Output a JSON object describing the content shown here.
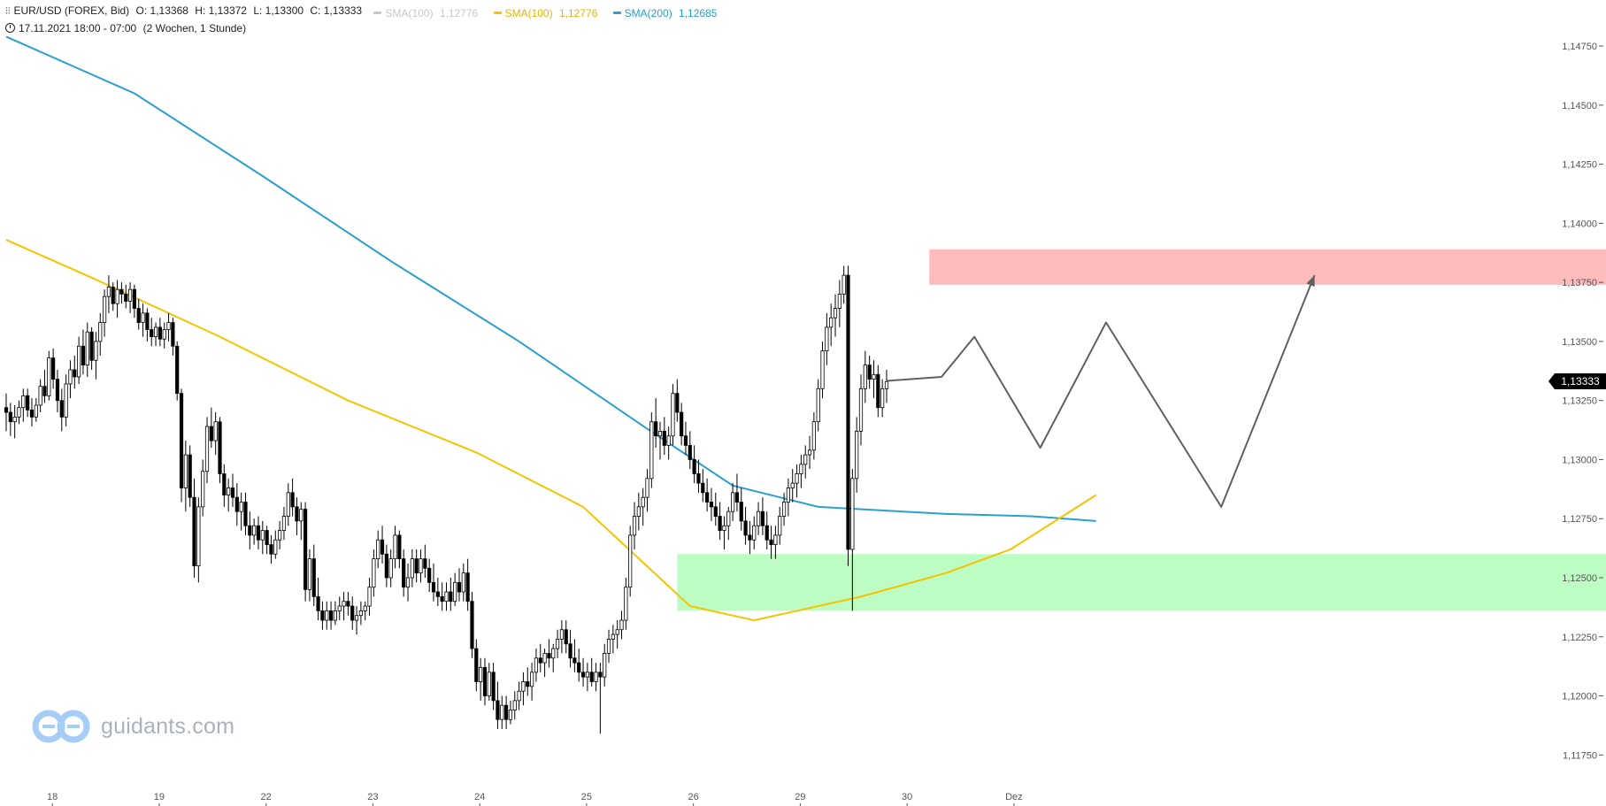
{
  "header": {
    "symbol": "EUR/USD (FOREX, Bid)",
    "open": "O: 1,13368",
    "high": "H: 1,13372",
    "low": "L: 1,13300",
    "close": "C: 1,13333",
    "indicators": [
      {
        "label": "SMA(100)",
        "value": "1,12776",
        "color": "#c8c8c8"
      },
      {
        "label": "SMA(100)",
        "value": "1,12776",
        "color": "#f5c400"
      },
      {
        "label": "SMA(200)",
        "value": "1,12685",
        "color": "#2a9fd0"
      }
    ],
    "period": "17.11.2021 18:00 - 07:00",
    "range": "(2 Wochen, 1 Stunde)"
  },
  "price_tag": "1,13333",
  "watermark": "guidants.com",
  "chart_data": {
    "type": "candlestick",
    "ylim": [
      1.1165,
      1.149
    ],
    "y_ticks": [
      "1,11750",
      "1,12000",
      "1,12250",
      "1,12500",
      "1,12750",
      "1,13000",
      "1,13250",
      "1,13500",
      "1,13750",
      "1,14000",
      "1,14250",
      "1,14500",
      "1,14750"
    ],
    "y_tick_values": [
      1.1175,
      1.12,
      1.1225,
      1.125,
      1.1275,
      1.13,
      1.1325,
      1.135,
      1.1375,
      1.14,
      1.1425,
      1.145,
      1.1475
    ],
    "x_ticks": [
      "18",
      "19",
      "22",
      "23",
      "24",
      "25",
      "26",
      "29",
      "30",
      "Dez"
    ],
    "x_tick_bar_index": [
      5,
      30,
      55,
      80,
      105,
      130,
      155,
      180,
      205,
      230
    ],
    "last_price": 1.13333,
    "ohlc": [
      [
        1.1322,
        1.1328,
        1.1312,
        1.132
      ],
      [
        1.132,
        1.1324,
        1.131,
        1.1316
      ],
      [
        1.1316,
        1.1323,
        1.1309,
        1.1318
      ],
      [
        1.1318,
        1.1325,
        1.1315,
        1.1322
      ],
      [
        1.1322,
        1.133,
        1.1316,
        1.1327
      ],
      [
        1.1327,
        1.133,
        1.1318,
        1.1321
      ],
      [
        1.1321,
        1.1326,
        1.1314,
        1.1318
      ],
      [
        1.1318,
        1.1326,
        1.1316,
        1.1323
      ],
      [
        1.1323,
        1.1334,
        1.132,
        1.1331
      ],
      [
        1.1331,
        1.1338,
        1.1324,
        1.1327
      ],
      [
        1.1327,
        1.1346,
        1.1325,
        1.1343
      ],
      [
        1.1343,
        1.1347,
        1.133,
        1.1334
      ],
      [
        1.1334,
        1.1338,
        1.132,
        1.1325
      ],
      [
        1.1325,
        1.133,
        1.1312,
        1.1318
      ],
      [
        1.1318,
        1.1336,
        1.1314,
        1.1332
      ],
      [
        1.1332,
        1.1342,
        1.1326,
        1.1338
      ],
      [
        1.1338,
        1.1344,
        1.133,
        1.1335
      ],
      [
        1.1335,
        1.1352,
        1.1332,
        1.1348
      ],
      [
        1.1348,
        1.1355,
        1.1336,
        1.134
      ],
      [
        1.134,
        1.1358,
        1.1335,
        1.1354
      ],
      [
        1.1354,
        1.1356,
        1.1338,
        1.1342
      ],
      [
        1.1342,
        1.1354,
        1.1334,
        1.135
      ],
      [
        1.135,
        1.1362,
        1.1344,
        1.1358
      ],
      [
        1.1358,
        1.1372,
        1.1352,
        1.1369
      ],
      [
        1.1369,
        1.1378,
        1.1362,
        1.1373
      ],
      [
        1.1373,
        1.1375,
        1.1363,
        1.1366
      ],
      [
        1.1366,
        1.1376,
        1.136,
        1.1372
      ],
      [
        1.1372,
        1.1375,
        1.1366,
        1.137
      ],
      [
        1.137,
        1.1374,
        1.1364,
        1.1367
      ],
      [
        1.1367,
        1.1375,
        1.1362,
        1.1372
      ],
      [
        1.1372,
        1.1374,
        1.136,
        1.1364
      ],
      [
        1.1364,
        1.1368,
        1.1355,
        1.1358
      ],
      [
        1.1358,
        1.1366,
        1.1352,
        1.1362
      ],
      [
        1.1362,
        1.1364,
        1.135,
        1.1355
      ],
      [
        1.1355,
        1.136,
        1.1348,
        1.1352
      ],
      [
        1.1352,
        1.1358,
        1.1348,
        1.1356
      ],
      [
        1.1356,
        1.136,
        1.1348,
        1.1351
      ],
      [
        1.1351,
        1.1358,
        1.1347,
        1.1355
      ],
      [
        1.1355,
        1.1362,
        1.135,
        1.1358
      ],
      [
        1.1358,
        1.136,
        1.1344,
        1.1348
      ],
      [
        1.1348,
        1.135,
        1.1325,
        1.1328
      ],
      [
        1.1328,
        1.133,
        1.1282,
        1.1288
      ],
      [
        1.1288,
        1.1308,
        1.1278,
        1.1302
      ],
      [
        1.1302,
        1.1306,
        1.128,
        1.1284
      ],
      [
        1.1284,
        1.1292,
        1.125,
        1.1255
      ],
      [
        1.1255,
        1.1284,
        1.1248,
        1.128
      ],
      [
        1.128,
        1.13,
        1.1276,
        1.1295
      ],
      [
        1.1295,
        1.1318,
        1.129,
        1.1314
      ],
      [
        1.1314,
        1.1322,
        1.1305,
        1.1308
      ],
      [
        1.1308,
        1.132,
        1.1302,
        1.1316
      ],
      [
        1.1316,
        1.1318,
        1.129,
        1.1294
      ],
      [
        1.1294,
        1.1298,
        1.128,
        1.1285
      ],
      [
        1.1285,
        1.1292,
        1.1278,
        1.1288
      ],
      [
        1.1288,
        1.1294,
        1.128,
        1.1284
      ],
      [
        1.1284,
        1.129,
        1.1272,
        1.1278
      ],
      [
        1.1278,
        1.1286,
        1.127,
        1.1282
      ],
      [
        1.1282,
        1.1286,
        1.1268,
        1.1272
      ],
      [
        1.1272,
        1.1278,
        1.1262,
        1.1268
      ],
      [
        1.1268,
        1.1275,
        1.1264,
        1.1272
      ],
      [
        1.1272,
        1.1276,
        1.1262,
        1.1266
      ],
      [
        1.1266,
        1.1274,
        1.126,
        1.127
      ],
      [
        1.127,
        1.1272,
        1.126,
        1.1264
      ],
      [
        1.1264,
        1.1268,
        1.1256,
        1.126
      ],
      [
        1.126,
        1.127,
        1.1258,
        1.1266
      ],
      [
        1.1266,
        1.1274,
        1.1262,
        1.127
      ],
      [
        1.127,
        1.128,
        1.1266,
        1.1276
      ],
      [
        1.1276,
        1.129,
        1.1272,
        1.1286
      ],
      [
        1.1286,
        1.1292,
        1.1276,
        1.128
      ],
      [
        1.128,
        1.1284,
        1.1268,
        1.1274
      ],
      [
        1.1274,
        1.1282,
        1.1266,
        1.1279
      ],
      [
        1.1279,
        1.1282,
        1.124,
        1.1245
      ],
      [
        1.1245,
        1.1262,
        1.124,
        1.1258
      ],
      [
        1.1258,
        1.1264,
        1.1238,
        1.1242
      ],
      [
        1.1242,
        1.125,
        1.1232,
        1.1236
      ],
      [
        1.1236,
        1.124,
        1.1228,
        1.1232
      ],
      [
        1.1232,
        1.124,
        1.1228,
        1.1236
      ],
      [
        1.1236,
        1.124,
        1.1228,
        1.1232
      ],
      [
        1.1232,
        1.124,
        1.123,
        1.1236
      ],
      [
        1.1236,
        1.1242,
        1.1232,
        1.1238
      ],
      [
        1.1238,
        1.1244,
        1.1232,
        1.124
      ],
      [
        1.124,
        1.1244,
        1.1234,
        1.1238
      ],
      [
        1.1238,
        1.1242,
        1.1228,
        1.1232
      ],
      [
        1.1232,
        1.1238,
        1.1226,
        1.1234
      ],
      [
        1.1234,
        1.124,
        1.123,
        1.1236
      ],
      [
        1.1236,
        1.124,
        1.1232,
        1.1238
      ],
      [
        1.1238,
        1.125,
        1.1234,
        1.1246
      ],
      [
        1.1246,
        1.1262,
        1.1242,
        1.1258
      ],
      [
        1.1258,
        1.127,
        1.1254,
        1.1266
      ],
      [
        1.1266,
        1.1272,
        1.1256,
        1.126
      ],
      [
        1.126,
        1.1264,
        1.1246,
        1.125
      ],
      [
        1.125,
        1.1262,
        1.1246,
        1.1258
      ],
      [
        1.1258,
        1.1272,
        1.1254,
        1.1268
      ],
      [
        1.1268,
        1.127,
        1.1254,
        1.1258
      ],
      [
        1.1258,
        1.1262,
        1.1242,
        1.1246
      ],
      [
        1.1246,
        1.1256,
        1.124,
        1.125
      ],
      [
        1.125,
        1.1262,
        1.1246,
        1.1258
      ],
      [
        1.1258,
        1.1262,
        1.1248,
        1.1252
      ],
      [
        1.1252,
        1.1262,
        1.1248,
        1.1258
      ],
      [
        1.1258,
        1.1264,
        1.125,
        1.1254
      ],
      [
        1.1254,
        1.1258,
        1.1244,
        1.1248
      ],
      [
        1.1248,
        1.1256,
        1.124,
        1.1244
      ],
      [
        1.1244,
        1.125,
        1.1238,
        1.1242
      ],
      [
        1.1242,
        1.1248,
        1.1236,
        1.124
      ],
      [
        1.124,
        1.1248,
        1.1236,
        1.1244
      ],
      [
        1.1244,
        1.125,
        1.1236,
        1.124
      ],
      [
        1.124,
        1.1252,
        1.1238,
        1.1248
      ],
      [
        1.1248,
        1.1254,
        1.124,
        1.1244
      ],
      [
        1.1244,
        1.1256,
        1.124,
        1.1252
      ],
      [
        1.1252,
        1.1258,
        1.1236,
        1.124
      ],
      [
        1.124,
        1.1244,
        1.1216,
        1.122
      ],
      [
        1.122,
        1.1224,
        1.1202,
        1.1206
      ],
      [
        1.1206,
        1.1216,
        1.1198,
        1.1212
      ],
      [
        1.1212,
        1.1216,
        1.1196,
        1.12
      ],
      [
        1.12,
        1.1214,
        1.1198,
        1.121
      ],
      [
        1.121,
        1.1214,
        1.1194,
        1.1198
      ],
      [
        1.1198,
        1.1206,
        1.1186,
        1.119
      ],
      [
        1.119,
        1.12,
        1.1186,
        1.1196
      ],
      [
        1.1196,
        1.12,
        1.1186,
        1.119
      ],
      [
        1.119,
        1.1198,
        1.1188,
        1.1194
      ],
      [
        1.1194,
        1.1202,
        1.119,
        1.1198
      ],
      [
        1.1198,
        1.1206,
        1.1194,
        1.1202
      ],
      [
        1.1202,
        1.121,
        1.1196,
        1.1206
      ],
      [
        1.1206,
        1.1212,
        1.12,
        1.1204
      ],
      [
        1.1204,
        1.1214,
        1.1198,
        1.121
      ],
      [
        1.121,
        1.122,
        1.1206,
        1.1216
      ],
      [
        1.1216,
        1.1222,
        1.121,
        1.1214
      ],
      [
        1.1214,
        1.122,
        1.1208,
        1.1218
      ],
      [
        1.1218,
        1.1224,
        1.1212,
        1.1216
      ],
      [
        1.1216,
        1.1222,
        1.121,
        1.122
      ],
      [
        1.122,
        1.1228,
        1.1216,
        1.1224
      ],
      [
        1.1224,
        1.1232,
        1.1218,
        1.1228
      ],
      [
        1.1228,
        1.1232,
        1.1218,
        1.1222
      ],
      [
        1.1222,
        1.1228,
        1.1212,
        1.1216
      ],
      [
        1.1216,
        1.1224,
        1.121,
        1.1214
      ],
      [
        1.1214,
        1.122,
        1.1206,
        1.121
      ],
      [
        1.121,
        1.1216,
        1.1204,
        1.1208
      ],
      [
        1.1208,
        1.1214,
        1.1202,
        1.121
      ],
      [
        1.121,
        1.1216,
        1.1204,
        1.1206
      ],
      [
        1.1206,
        1.1214,
        1.1202,
        1.121
      ],
      [
        1.121,
        1.1214,
        1.1184,
        1.1208
      ],
      [
        1.1208,
        1.1222,
        1.1204,
        1.1218
      ],
      [
        1.1218,
        1.1228,
        1.1214,
        1.1224
      ],
      [
        1.1224,
        1.123,
        1.1218,
        1.1226
      ],
      [
        1.1226,
        1.1232,
        1.122,
        1.1228
      ],
      [
        1.1228,
        1.1236,
        1.1224,
        1.1232
      ],
      [
        1.1232,
        1.125,
        1.1228,
        1.1246
      ],
      [
        1.1246,
        1.1272,
        1.1242,
        1.1268
      ],
      [
        1.1268,
        1.1282,
        1.1262,
        1.1276
      ],
      [
        1.1276,
        1.1286,
        1.127,
        1.128
      ],
      [
        1.128,
        1.1288,
        1.1272,
        1.1284
      ],
      [
        1.1284,
        1.1296,
        1.1278,
        1.1292
      ],
      [
        1.1292,
        1.132,
        1.1288,
        1.1316
      ],
      [
        1.1316,
        1.1326,
        1.1305,
        1.131
      ],
      [
        1.131,
        1.1316,
        1.13,
        1.1312
      ],
      [
        1.1312,
        1.1318,
        1.1302,
        1.1306
      ],
      [
        1.1306,
        1.1314,
        1.13,
        1.131
      ],
      [
        1.131,
        1.1332,
        1.1306,
        1.1328
      ],
      [
        1.1328,
        1.1334,
        1.1316,
        1.132
      ],
      [
        1.132,
        1.1324,
        1.1306,
        1.131
      ],
      [
        1.131,
        1.1316,
        1.1302,
        1.1306
      ],
      [
        1.1306,
        1.1312,
        1.1296,
        1.13
      ],
      [
        1.13,
        1.1306,
        1.129,
        1.1294
      ],
      [
        1.1294,
        1.13,
        1.1286,
        1.129
      ],
      [
        1.129,
        1.1296,
        1.1282,
        1.1286
      ],
      [
        1.1286,
        1.1292,
        1.1278,
        1.1282
      ],
      [
        1.1282,
        1.1288,
        1.1274,
        1.128
      ],
      [
        1.128,
        1.1286,
        1.1272,
        1.1276
      ],
      [
        1.1276,
        1.1282,
        1.1266,
        1.127
      ],
      [
        1.127,
        1.1276,
        1.1262,
        1.1272
      ],
      [
        1.1272,
        1.128,
        1.1266,
        1.1278
      ],
      [
        1.1278,
        1.129,
        1.1274,
        1.1286
      ],
      [
        1.1286,
        1.1294,
        1.1278,
        1.1282
      ],
      [
        1.1282,
        1.1288,
        1.127,
        1.1274
      ],
      [
        1.1274,
        1.128,
        1.1264,
        1.1268
      ],
      [
        1.1268,
        1.1274,
        1.126,
        1.1266
      ],
      [
        1.1266,
        1.1276,
        1.1262,
        1.1272
      ],
      [
        1.1272,
        1.1282,
        1.1268,
        1.1278
      ],
      [
        1.1278,
        1.1284,
        1.1268,
        1.1272
      ],
      [
        1.1272,
        1.1278,
        1.1262,
        1.1266
      ],
      [
        1.1266,
        1.1272,
        1.1258,
        1.1264
      ],
      [
        1.1264,
        1.1272,
        1.1258,
        1.1268
      ],
      [
        1.1268,
        1.128,
        1.1264,
        1.1276
      ],
      [
        1.1276,
        1.1286,
        1.1272,
        1.1282
      ],
      [
        1.1282,
        1.1292,
        1.1276,
        1.1288
      ],
      [
        1.1288,
        1.1296,
        1.1282,
        1.129
      ],
      [
        1.129,
        1.1298,
        1.1284,
        1.1294
      ],
      [
        1.1294,
        1.1302,
        1.1288,
        1.1298
      ],
      [
        1.1298,
        1.1306,
        1.1292,
        1.1302
      ],
      [
        1.1302,
        1.131,
        1.1296,
        1.1304
      ],
      [
        1.1304,
        1.132,
        1.13,
        1.1316
      ],
      [
        1.1316,
        1.1334,
        1.1312,
        1.133
      ],
      [
        1.133,
        1.135,
        1.1326,
        1.1346
      ],
      [
        1.1346,
        1.1362,
        1.134,
        1.1356
      ],
      [
        1.1356,
        1.1366,
        1.1348,
        1.136
      ],
      [
        1.136,
        1.137,
        1.1352,
        1.1364
      ],
      [
        1.1364,
        1.1376,
        1.1356,
        1.137
      ],
      [
        1.137,
        1.1382,
        1.1366,
        1.1378
      ],
      [
        1.1378,
        1.1382,
        1.1255,
        1.1262
      ],
      [
        1.1262,
        1.1296,
        1.1236,
        1.1292
      ],
      [
        1.1292,
        1.1318,
        1.1286,
        1.1312
      ],
      [
        1.1312,
        1.1336,
        1.1306,
        1.133
      ],
      [
        1.133,
        1.1346,
        1.1324,
        1.134
      ],
      [
        1.134,
        1.1344,
        1.133,
        1.1334
      ],
      [
        1.1334,
        1.1342,
        1.1326,
        1.1336
      ],
      [
        1.1336,
        1.134,
        1.1318,
        1.1322
      ],
      [
        1.1322,
        1.1334,
        1.1318,
        1.133
      ],
      [
        1.133,
        1.1338,
        1.1324,
        1.1333
      ]
    ],
    "sma100": [
      [
        0,
        1.1393
      ],
      [
        20,
        1.1377
      ],
      [
        50,
        1.1352
      ],
      [
        80,
        1.1325
      ],
      [
        110,
        1.1303
      ],
      [
        135,
        1.128
      ],
      [
        160,
        1.1238
      ],
      [
        175,
        1.1232
      ],
      [
        200,
        1.1242
      ],
      [
        220,
        1.1252
      ],
      [
        235,
        1.1262
      ],
      [
        255,
        1.1285
      ]
    ],
    "sma200": [
      [
        0,
        1.1479
      ],
      [
        30,
        1.1455
      ],
      [
        60,
        1.142
      ],
      [
        90,
        1.1384
      ],
      [
        120,
        1.135
      ],
      [
        150,
        1.1313
      ],
      [
        170,
        1.1289
      ],
      [
        190,
        1.128
      ],
      [
        220,
        1.1277
      ],
      [
        240,
        1.1276
      ],
      [
        255,
        1.1274
      ]
    ],
    "zones": [
      {
        "name": "resistance",
        "y1": 1.1374,
        "y2": 1.1389,
        "color": "#ffbcbc"
      },
      {
        "name": "support",
        "y1": 1.1236,
        "y2": 1.126,
        "color": "#bdfcc2"
      }
    ],
    "projection": [
      [
        1.13333,
        0
      ],
      [
        1.1335,
        10
      ],
      [
        1.1352,
        16
      ],
      [
        1.1305,
        28
      ],
      [
        1.1358,
        40
      ],
      [
        1.128,
        61
      ],
      [
        1.1378,
        78
      ]
    ]
  }
}
